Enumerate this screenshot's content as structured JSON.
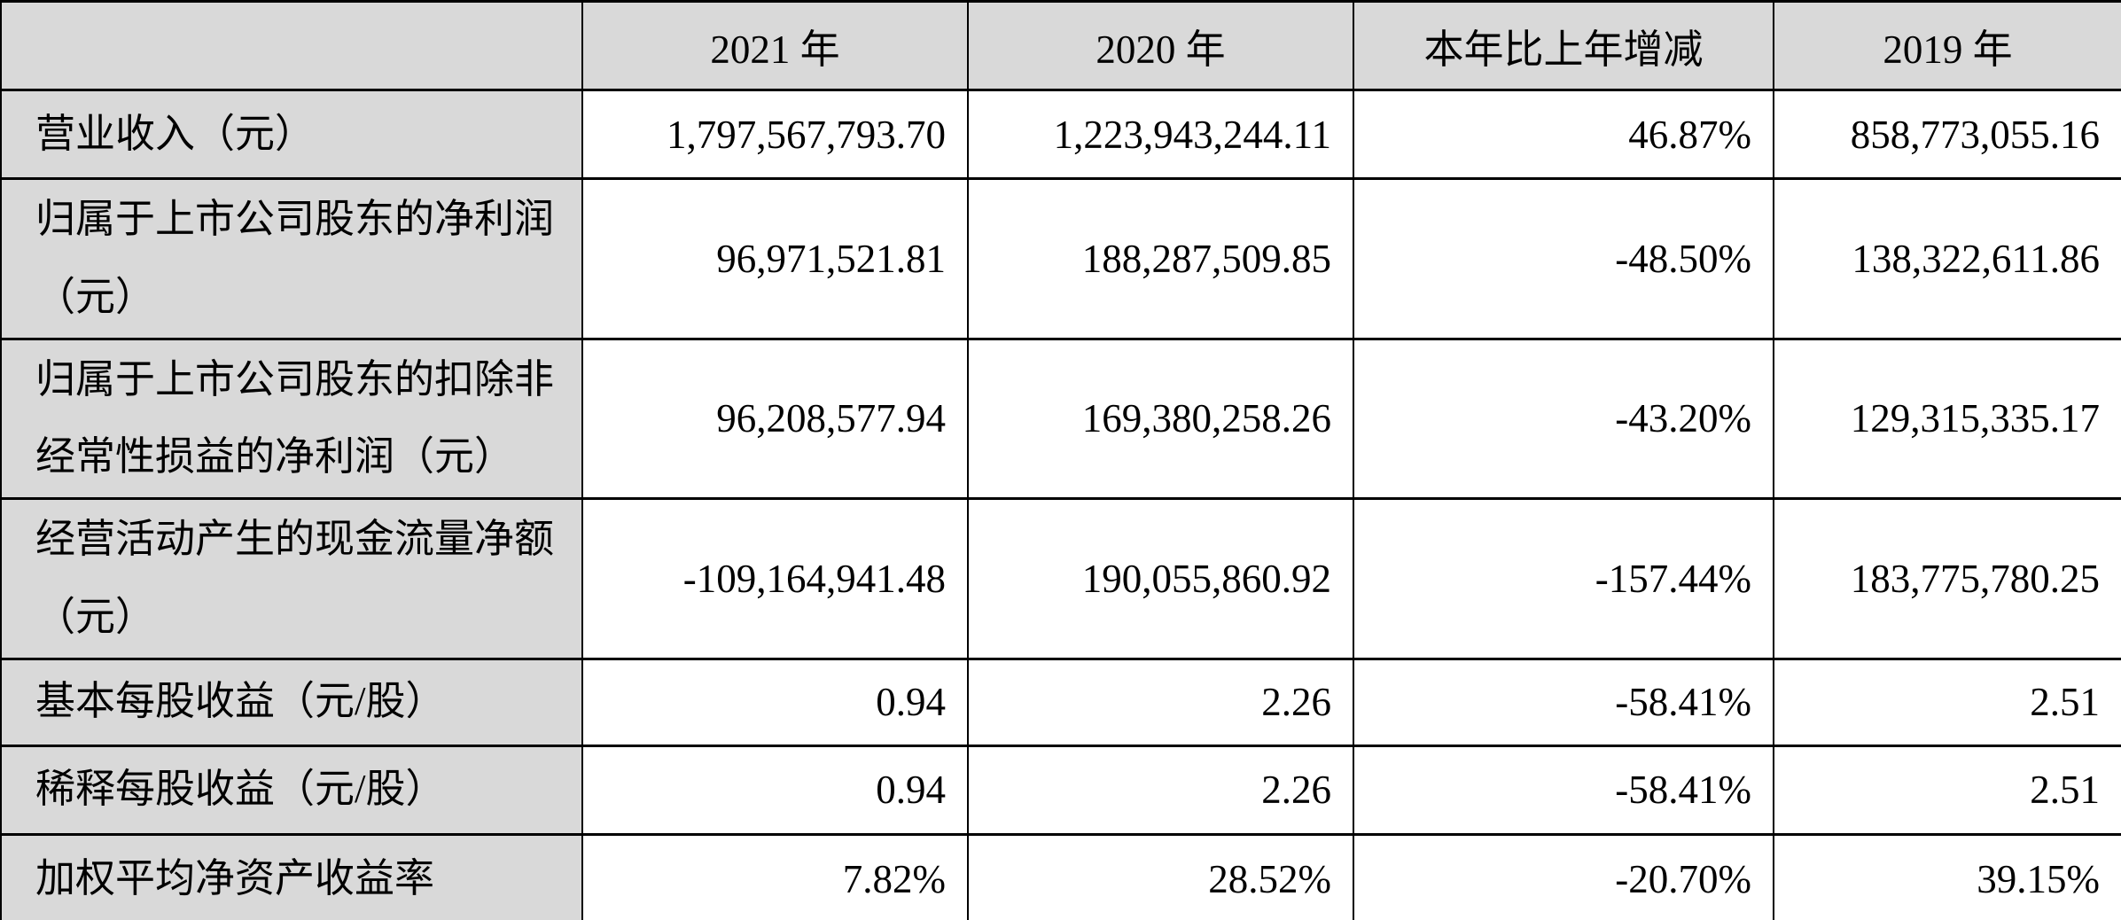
{
  "table": {
    "columns": [
      "",
      "2021 年",
      "2020 年",
      "本年比上年增减",
      "2019 年"
    ],
    "rows": [
      {
        "label": "营业收入（元）",
        "values": [
          "1,797,567,793.70",
          "1,223,943,244.11",
          "46.87%",
          "858,773,055.16"
        ]
      },
      {
        "label": "归属于上市公司股东的净利润（元）",
        "values": [
          "96,971,521.81",
          "188,287,509.85",
          "-48.50%",
          "138,322,611.86"
        ]
      },
      {
        "label": "归属于上市公司股东的扣除非经常性损益的净利润（元）",
        "values": [
          "96,208,577.94",
          "169,380,258.26",
          "-43.20%",
          "129,315,335.17"
        ]
      },
      {
        "label": "经营活动产生的现金流量净额（元）",
        "values": [
          "-109,164,941.48",
          "190,055,860.92",
          "-157.44%",
          "183,775,780.25"
        ]
      },
      {
        "label": "基本每股收益（元/股）",
        "values": [
          "0.94",
          "2.26",
          "-58.41%",
          "2.51"
        ]
      },
      {
        "label": "稀释每股收益（元/股）",
        "values": [
          "0.94",
          "2.26",
          "-58.41%",
          "2.51"
        ]
      },
      {
        "label": "加权平均净资产收益率",
        "values": [
          "7.82%",
          "28.52%",
          "-20.70%",
          "39.15%"
        ]
      }
    ],
    "colors": {
      "header_bg": "#d9d9d9",
      "label_bg": "#d9d9d9",
      "cell_bg": "#ffffff",
      "border": "#000000",
      "text": "#000000"
    }
  }
}
